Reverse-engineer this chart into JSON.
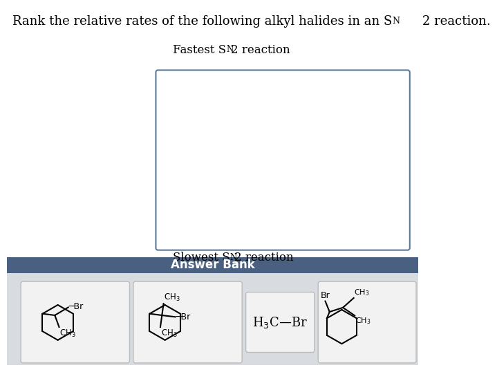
{
  "bg_color": "#ffffff",
  "answer_bank_header_color": "#4a6080",
  "answer_bank_bg_color": "#d8dce0",
  "card_bg_color": "#f2f2f2",
  "card_border_color": "#bbbbbb",
  "box_border_color": "#5a7a9a",
  "title_prefix": "Rank the relative rates of the following alkyl halides in an S",
  "title_suffix": "2 reaction.",
  "fastest_prefix": "Fastest S",
  "fastest_suffix": "2 reaction",
  "slowest_prefix": "Slowest S",
  "slowest_suffix": "2 reaction",
  "answer_bank_text": "Answer Bank",
  "h3c_br_text": "H₃C—Br"
}
